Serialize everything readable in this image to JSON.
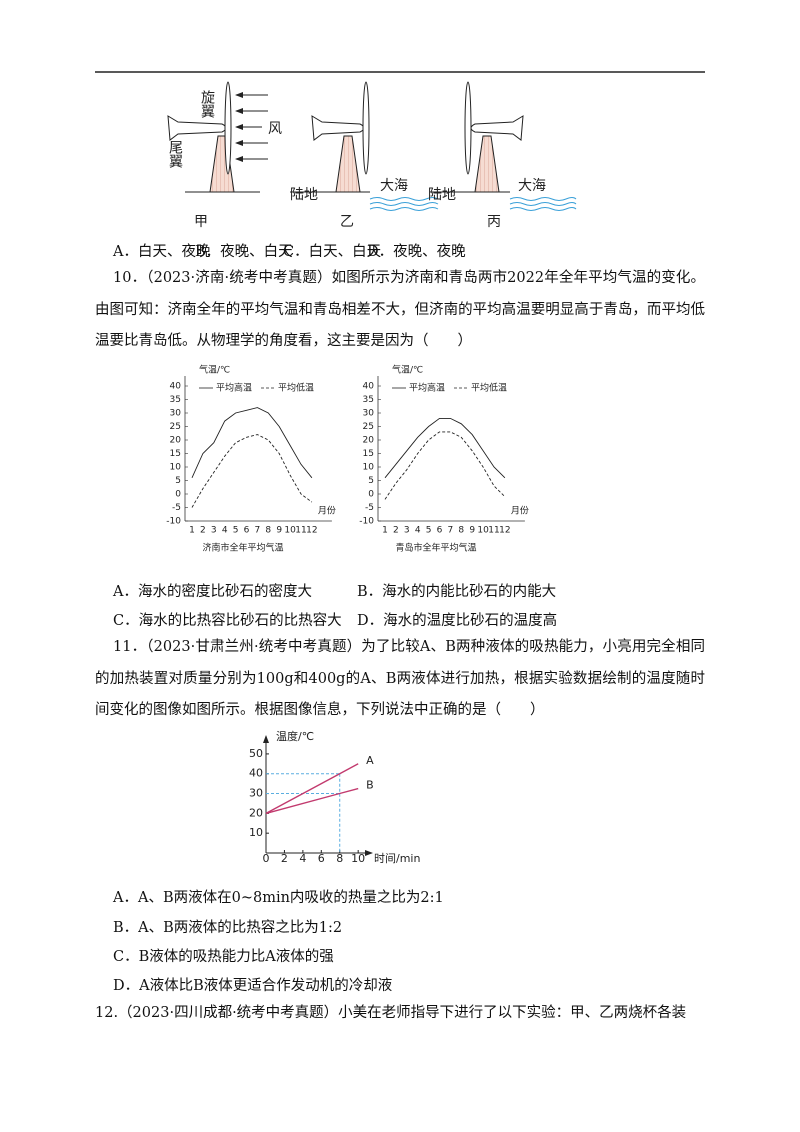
{
  "figure_9": {
    "rotor_label": "旋翼",
    "tail_label": "尾翼",
    "wind_label": "风",
    "land_label": "陆地",
    "sea_label": "大海",
    "panels": [
      "甲",
      "乙",
      "丙"
    ]
  },
  "q9_options": [
    "A．白天、夜晚",
    "B．夜晚、白天",
    "C．白天、白天",
    "D．夜晚、夜晚"
  ],
  "q10": {
    "stem": "10．（2023·济南·统考中考真题）如图所示为济南和青岛两市2022年全年平均气温的变化。由图可知：济南全年的平均气温和青岛相差不大，但济南的平均高温要明显高于青岛，而平均低温要比青岛低。从物理学的角度看，这主要是因为（　　）",
    "charts": [
      {
        "type": "line",
        "y_label": "气温/℃",
        "x_label": "月份",
        "caption": "济南市全年平均气温",
        "categories": [
          1,
          2,
          3,
          4,
          5,
          6,
          7,
          8,
          9,
          10,
          11,
          12
        ],
        "series": [
          {
            "name": "平均高温",
            "color": "#222222",
            "values": [
              6,
              15,
              19,
              27,
              30,
              31,
              32,
              30,
              25,
              18,
              11,
              6
            ]
          },
          {
            "name": "平均低温",
            "color": "#222222",
            "values": [
              -5,
              2,
              8,
              14,
              19,
              21,
              22,
              20,
              15,
              7,
              0,
              -3
            ]
          }
        ],
        "ylim": [
          -10,
          40
        ],
        "yticks": [
          -10,
          -5,
          0,
          5,
          10,
          15,
          20,
          25,
          30,
          35,
          40
        ]
      },
      {
        "type": "line",
        "y_label": "气温/℃",
        "x_label": "月份",
        "caption": "青岛市全年平均气温",
        "categories": [
          1,
          2,
          3,
          4,
          5,
          6,
          7,
          8,
          9,
          10,
          11,
          12
        ],
        "series": [
          {
            "name": "平均高温",
            "color": "#222222",
            "values": [
              6,
              11,
              16,
              21,
              25,
              28,
              28,
              26,
              22,
              16,
              10,
              6
            ]
          },
          {
            "name": "平均低温",
            "color": "#222222",
            "values": [
              -2,
              4,
              9,
              15,
              20,
              23,
              23,
              21,
              16,
              10,
              3,
              -1
            ]
          }
        ],
        "ylim": [
          -10,
          40
        ],
        "yticks": [
          -10,
          -5,
          0,
          5,
          10,
          15,
          20,
          25,
          30,
          35,
          40
        ]
      }
    ],
    "options": [
      "A．海水的密度比砂石的密度大",
      "B．海水的内能比砂石的内能大",
      "C．海水的比热容比砂石的比热容大",
      "D．海水的温度比砂石的温度高"
    ]
  },
  "q11": {
    "stem": "11．（2023·甘肃兰州·统考中考真题）为了比较A、B两种液体的吸热能力，小亮用完全相同的加热装置对质量分别为100g和400g的A、B两液体进行加热，根据实验数据绘制的温度随时间变化的图像如图所示。根据图像信息，下列说法中正确的是（　　）",
    "chart": {
      "type": "line",
      "y_label": "温度/℃",
      "x_label": "时间/min",
      "x": [
        0,
        8,
        10
      ],
      "series": [
        {
          "name": "A",
          "color": "#c23a6e",
          "values": [
            20,
            40,
            45
          ]
        },
        {
          "name": "B",
          "color": "#c23a6e",
          "values": [
            20,
            30,
            32.5
          ]
        }
      ],
      "xlim": [
        0,
        11.5
      ],
      "xticks": [
        0,
        2,
        4,
        6,
        8,
        10
      ],
      "ylim": [
        0,
        55
      ],
      "yticks": [
        10,
        20,
        30,
        40,
        50
      ]
    },
    "options": [
      "A．A、B两液体在0~8min内吸收的热量之比为2:1",
      "B．A、B两液体的比热容之比为1:2",
      "C．B液体的吸热能力比A液体的强",
      "D．A液体比B液体更适合作发动机的冷却液"
    ]
  },
  "q12": {
    "stem": "12.（2023·四川成都·统考中考真题）小美在老师指导下进行了以下实验：甲、乙两烧杯各装"
  }
}
